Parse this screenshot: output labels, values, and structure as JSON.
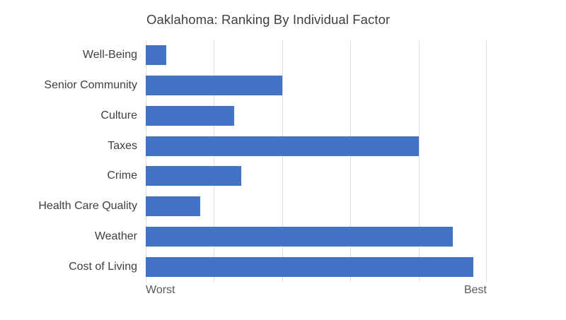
{
  "title": "Oaklahoma: Ranking By Individual Factor",
  "colors": {
    "bar": "#4472C4",
    "gridline": "#dcdcdc",
    "title_text": "#404040",
    "category_text": "#404040",
    "axis_text": "#595959",
    "background": "#ffffff"
  },
  "x_axis": {
    "left_label": "Worst",
    "right_label": "Best"
  },
  "chart_data": {
    "type": "bar",
    "orientation": "horizontal",
    "title": "Oaklahoma: Ranking By Individual Factor",
    "categories": [
      "Well-Being",
      "Senior Community",
      "Culture",
      "Taxes",
      "Crime",
      "Health Care Quality",
      "Weather",
      "Cost of Living"
    ],
    "values": [
      3,
      20,
      13,
      40,
      14,
      8,
      45,
      48
    ],
    "xlim": [
      0,
      50
    ],
    "gridline_interval": 10,
    "xlabel_left": "Worst",
    "xlabel_right": "Best",
    "ylabel": "",
    "grid": true,
    "legend_position": "none",
    "bar_color": "#4472C4"
  }
}
